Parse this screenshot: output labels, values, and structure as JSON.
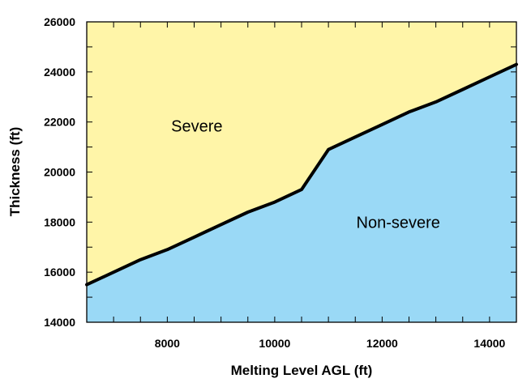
{
  "chart_data": {
    "type": "area",
    "xlabel": "Melting Level AGL (ft)",
    "ylabel": "Thickness (ft)",
    "xlim": [
      6500,
      14500
    ],
    "ylim": [
      14000,
      26000
    ],
    "x_ticks": [
      8000,
      10000,
      12000,
      14000
    ],
    "x_minor_ticks": [
      7000,
      7500,
      8000,
      8500,
      9000,
      9500,
      10000,
      10500,
      11000,
      11500,
      12000,
      12500,
      13000,
      13500,
      14000
    ],
    "y_ticks": [
      14000,
      16000,
      18000,
      20000,
      22000,
      24000,
      26000
    ],
    "y_minor_ticks": [
      15000,
      16000,
      17000,
      18000,
      19000,
      20000,
      21000,
      22000,
      23000,
      24000,
      25000
    ],
    "boundary": {
      "x": [
        6500,
        7000,
        7500,
        8000,
        8500,
        9000,
        9500,
        10000,
        10500,
        11000,
        11500,
        12000,
        12500,
        13000,
        13500,
        14000,
        14500
      ],
      "y": [
        15500,
        16000,
        16500,
        16900,
        17400,
        17900,
        18400,
        18800,
        19300,
        20900,
        21400,
        21900,
        22400,
        22800,
        23300,
        23800,
        24300
      ]
    },
    "regions": [
      {
        "label": "Severe",
        "side": "above",
        "color": "#fff5a8",
        "label_at": [
          8550,
          21850
        ]
      },
      {
        "label": "Non-severe",
        "side": "below",
        "color": "#9ad9f6",
        "label_at": [
          12300,
          18000
        ]
      }
    ],
    "line_color": "#000000",
    "grid": false
  }
}
